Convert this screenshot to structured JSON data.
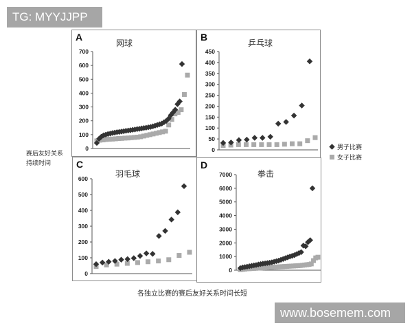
{
  "watermarks": {
    "top": "TG: MYYJJPP",
    "bottom": "www.bosemem.com"
  },
  "figure": {
    "y_axis_label_line1": "赛后友好关系",
    "y_axis_label_line2": "持续时间",
    "x_axis_label": "各独立比赛的赛后友好关系时间长短",
    "legend": [
      {
        "label": "男子比赛",
        "marker": "diamond",
        "color": "#333333"
      },
      {
        "label": "女子比赛",
        "marker": "square",
        "color": "#aaaaaa"
      }
    ]
  },
  "chart_data": [
    {
      "panel": "A",
      "title": "网球",
      "type": "scatter",
      "ylim": [
        0,
        700
      ],
      "yticks": [
        0,
        100,
        200,
        300,
        400,
        500,
        600,
        700
      ],
      "xlabel": "",
      "ylabel": "赛后友好关系持续时间",
      "series": [
        {
          "name": "男子比赛",
          "values": [
            40,
            70,
            85,
            95,
            100,
            105,
            108,
            112,
            115,
            118,
            120,
            122,
            125,
            128,
            130,
            132,
            135,
            137,
            140,
            142,
            145,
            148,
            150,
            153,
            156,
            160,
            165,
            170,
            175,
            180,
            190,
            200,
            215,
            240,
            260,
            280,
            320,
            340,
            610
          ]
        },
        {
          "name": "女子比赛",
          "values": [
            55,
            60,
            62,
            65,
            67,
            68,
            70,
            72,
            73,
            75,
            76,
            78,
            80,
            82,
            85,
            90,
            95,
            100,
            105,
            110,
            115,
            120,
            125,
            170,
            210,
            250,
            260,
            280,
            390,
            530
          ]
        }
      ]
    },
    {
      "panel": "B",
      "title": "乒乓球",
      "type": "scatter",
      "ylim": [
        0,
        450
      ],
      "yticks": [
        0,
        50,
        100,
        150,
        200,
        250,
        300,
        350,
        400,
        450
      ],
      "xlabel": "",
      "ylabel": "赛后友好关系持续时间",
      "series": [
        {
          "name": "男子比赛",
          "values": [
            32,
            34,
            45,
            47,
            55,
            55,
            60,
            120,
            128,
            157,
            203,
            405
          ]
        },
        {
          "name": "女子比赛",
          "values": [
            20,
            22,
            24,
            24,
            24,
            24,
            24,
            24,
            26,
            28,
            28,
            42,
            56
          ]
        }
      ]
    },
    {
      "panel": "C",
      "title": "羽毛球",
      "type": "scatter",
      "ylim": [
        0,
        600
      ],
      "yticks": [
        0,
        100,
        200,
        300,
        400,
        500,
        600
      ],
      "xlabel": "",
      "ylabel": "赛后友好关系持续时间",
      "series": [
        {
          "name": "男子比赛",
          "values": [
            60,
            70,
            75,
            80,
            88,
            92,
            98,
            112,
            128,
            125,
            238,
            270,
            342,
            388,
            553
          ]
        },
        {
          "name": "女子比赛",
          "values": [
            45,
            55,
            60,
            65,
            70,
            75,
            80,
            88,
            115,
            135
          ]
        }
      ]
    },
    {
      "panel": "D",
      "title": "拳击",
      "type": "scatter",
      "ylim": [
        0,
        7000
      ],
      "yticks": [
        0,
        1000,
        2000,
        3000,
        4000,
        5000,
        6000,
        7000
      ],
      "xlabel": "",
      "ylabel": "赛后友好关系持续时间",
      "series": [
        {
          "name": "男子比赛",
          "values": [
            150,
            200,
            230,
            260,
            290,
            320,
            350,
            380,
            420,
            450,
            480,
            500,
            520,
            550,
            580,
            620,
            660,
            700,
            760,
            820,
            880,
            940,
            1000,
            1050,
            1100,
            1180,
            1250,
            1320,
            1800,
            1750,
            2050,
            2200,
            6000
          ]
        },
        {
          "name": "女子比赛",
          "values": [
            40,
            60,
            80,
            100,
            110,
            120,
            130,
            140,
            150,
            160,
            170,
            180,
            190,
            200,
            210,
            220,
            230,
            240,
            250,
            260,
            270,
            280,
            290,
            300,
            310,
            320,
            330,
            340,
            360,
            380,
            400,
            420,
            460,
            700,
            900,
            950
          ]
        }
      ]
    }
  ]
}
